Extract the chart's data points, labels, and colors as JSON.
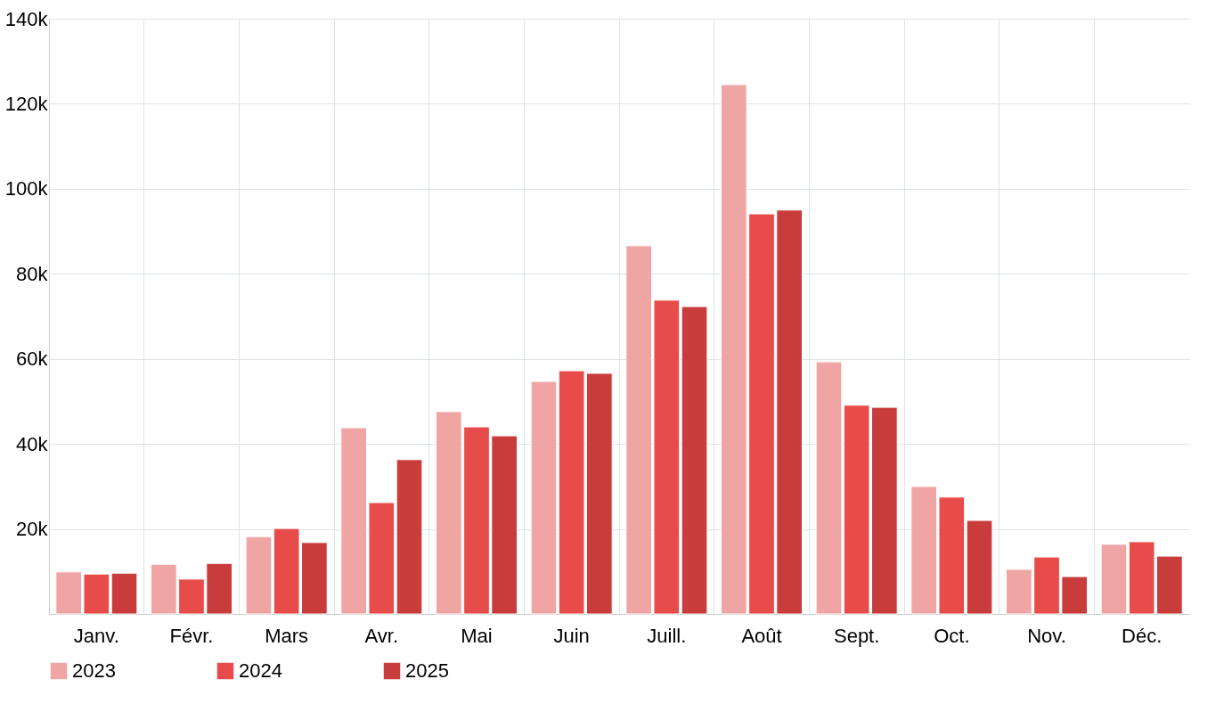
{
  "chart_data": {
    "type": "bar",
    "categories": [
      "Janv.",
      "Févr.",
      "Mars",
      "Avr.",
      "Mai",
      "Juin",
      "Juill.",
      "Août",
      "Sept.",
      "Oct.",
      "Nov.",
      "Déc."
    ],
    "series": [
      {
        "name": "2023",
        "color": "#f0a5a5",
        "values": [
          9.9,
          11.7,
          18.2,
          43.8,
          47.6,
          54.7,
          86.6,
          124.5,
          59.3,
          30.0,
          10.5,
          16.4
        ]
      },
      {
        "name": "2024",
        "color": "#e84c4a",
        "values": [
          9.4,
          8.2,
          20.1,
          26.2,
          44.0,
          57.2,
          73.8,
          94.1,
          49.1,
          27.5,
          13.4,
          17.0
        ]
      },
      {
        "name": "2025",
        "color": "#c93c3c",
        "values": [
          9.6,
          11.9,
          16.8,
          36.3,
          41.9,
          56.6,
          72.3,
          95.0,
          48.6,
          22.0,
          8.8,
          13.6
        ]
      }
    ],
    "ylim": [
      0,
      140
    ],
    "yticks": [
      {
        "value": 0,
        "label": null
      },
      {
        "value": 20,
        "label": "20k"
      },
      {
        "value": 40,
        "label": "40k"
      },
      {
        "value": 60,
        "label": "60k"
      },
      {
        "value": 80,
        "label": "80k"
      },
      {
        "value": 100,
        "label": "100k"
      },
      {
        "value": 120,
        "label": "120k"
      },
      {
        "value": 140,
        "label": "140k"
      }
    ],
    "grid": true,
    "legend": "bottom"
  }
}
